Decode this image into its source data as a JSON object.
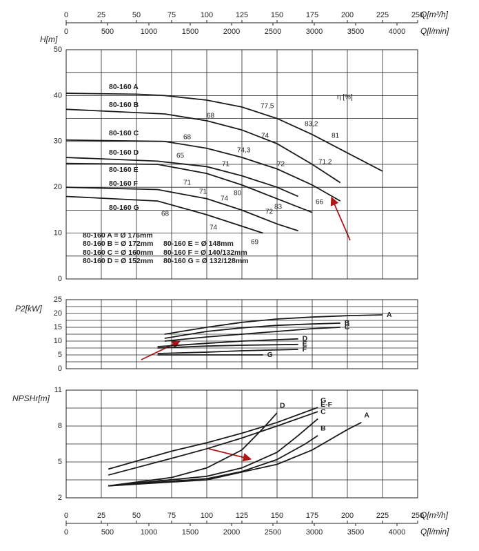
{
  "q_axes": [
    {
      "label": "Q[m³/h]",
      "xlim": [
        0,
        250
      ],
      "xticks": [
        0,
        25,
        50,
        75,
        100,
        125,
        150,
        175,
        200,
        225,
        250
      ]
    },
    {
      "label": "Q[l/min]",
      "xlim": [
        0,
        4250
      ],
      "xticks": [
        0,
        500,
        1000,
        1500,
        2000,
        2500,
        3000,
        3500,
        4000
      ]
    }
  ],
  "chart_data": [
    {
      "type": "line",
      "ylabel": "H[m]",
      "ylim": [
        0,
        50
      ],
      "yticks": [
        0,
        10,
        20,
        30,
        40,
        50
      ],
      "xlim": [
        0,
        250
      ],
      "grid": true,
      "series": [
        {
          "name": "80-160 A",
          "color": "#1a1a1a",
          "x": [
            0,
            50,
            70,
            100,
            125,
            150,
            175,
            200,
            225
          ],
          "values": [
            40.5,
            40.3,
            40,
            39,
            37.5,
            35,
            31.5,
            27.5,
            23.5
          ]
        },
        {
          "name": "80-160 B",
          "color": "#1a1a1a",
          "x": [
            0,
            70,
            100,
            125,
            150,
            175,
            195
          ],
          "values": [
            37,
            36,
            34.5,
            32.5,
            29.5,
            25,
            21
          ]
        },
        {
          "name": "80-160 C",
          "color": "#1a1a1a",
          "x": [
            0,
            70,
            100,
            125,
            150,
            175,
            195
          ],
          "values": [
            30.3,
            30,
            28.5,
            26.5,
            24,
            20.5,
            17
          ]
        },
        {
          "name": "80-160 D",
          "color": "#1a1a1a",
          "x": [
            0,
            65,
            100,
            125,
            150,
            165
          ],
          "values": [
            26.5,
            25.7,
            24.5,
            22.5,
            20,
            18
          ]
        },
        {
          "name": "80-160 E",
          "color": "#1a1a1a",
          "x": [
            0,
            65,
            100,
            125,
            150,
            175
          ],
          "values": [
            25.2,
            25,
            23,
            20.5,
            17.5,
            14.5
          ]
        },
        {
          "name": "80-160 F",
          "color": "#1a1a1a",
          "x": [
            0,
            65,
            100,
            125,
            150,
            165
          ],
          "values": [
            20,
            19.5,
            17.5,
            15,
            12,
            10.5
          ]
        },
        {
          "name": "80-160 G",
          "color": "#1a1a1a",
          "x": [
            0,
            65,
            100,
            125,
            140
          ],
          "values": [
            18,
            17,
            14,
            11.5,
            10
          ]
        }
      ],
      "annotations": [
        "η [%]",
        "77,5",
        "83,2",
        "81",
        "68",
        "74",
        "68",
        "74,3",
        "65",
        "71",
        "72",
        "71,2",
        "71",
        "80",
        "66",
        "71",
        "74",
        "83",
        "72",
        "68",
        "74",
        "69"
      ],
      "legend_texts": [
        "80-160 A = Ø 176mm",
        "80-160 B = Ø 172mm",
        "80-160 C = Ø 160mm",
        "80-160 D = Ø 152mm",
        "80-160 E = Ø 148mm",
        "80-160 F = Ø 140/132mm",
        "80-160 G = Ø 132/128mm"
      ]
    },
    {
      "type": "line",
      "ylabel": "P2[kW]",
      "ylim": [
        0,
        25
      ],
      "yticks": [
        0,
        5,
        10,
        15,
        20,
        25
      ],
      "xlim": [
        0,
        250
      ],
      "grid": true,
      "series": [
        {
          "name": "A",
          "color": "#1a1a1a",
          "x": [
            70,
            100,
            125,
            150,
            175,
            200,
            225
          ],
          "values": [
            12.5,
            15,
            16.8,
            18,
            18.7,
            19.2,
            19.5
          ]
        },
        {
          "name": "B",
          "color": "#1a1a1a",
          "x": [
            70,
            100,
            125,
            150,
            175,
            195
          ],
          "values": [
            11,
            13.5,
            14.8,
            15.7,
            16.2,
            16.5
          ]
        },
        {
          "name": "C",
          "color": "#1a1a1a",
          "x": [
            70,
            100,
            125,
            150,
            175,
            195
          ],
          "values": [
            10,
            11.5,
            12.5,
            13.5,
            14.5,
            15
          ]
        },
        {
          "name": "D",
          "color": "#1a1a1a",
          "x": [
            65,
            100,
            125,
            150,
            165
          ],
          "values": [
            8,
            9.2,
            10,
            10.5,
            10.8
          ]
        },
        {
          "name": "E",
          "color": "#1a1a1a",
          "x": [
            65,
            100,
            125,
            165
          ],
          "values": [
            7.5,
            8.2,
            8.5,
            8.8
          ]
        },
        {
          "name": "F",
          "color": "#1a1a1a",
          "x": [
            65,
            100,
            125,
            165
          ],
          "values": [
            5.5,
            6,
            6.5,
            7
          ]
        },
        {
          "name": "G",
          "color": "#1a1a1a",
          "x": [
            65,
            100,
            140
          ],
          "values": [
            5,
            5,
            5
          ]
        }
      ]
    },
    {
      "type": "line",
      "ylabel": "NPSHr[m]",
      "ylim": [
        2,
        11
      ],
      "yticks": [
        2,
        5,
        8,
        11
      ],
      "xlim": [
        0,
        250
      ],
      "grid": true,
      "series": [
        {
          "name": "A",
          "color": "#1a1a1a",
          "x": [
            30,
            100,
            150,
            175,
            200,
            210
          ],
          "values": [
            3,
            3.5,
            4.8,
            6,
            7.7,
            8.3
          ]
        },
        {
          "name": "B",
          "color": "#1a1a1a",
          "x": [
            30,
            100,
            125,
            150,
            170,
            179
          ],
          "values": [
            3,
            3.6,
            4.2,
            5.2,
            6.5,
            7.2
          ]
        },
        {
          "name": "C",
          "color": "#1a1a1a",
          "x": [
            30,
            100,
            125,
            150,
            165,
            179
          ],
          "values": [
            3,
            3.8,
            4.5,
            5.8,
            7.2,
            8.6
          ]
        },
        {
          "name": "D",
          "color": "#1a1a1a",
          "x": [
            30,
            75,
            100,
            125,
            140,
            150
          ],
          "values": [
            3,
            3.7,
            4.5,
            6,
            7.8,
            9.1
          ]
        },
        {
          "name": "E-F",
          "color": "#1a1a1a",
          "x": [
            30,
            75,
            100,
            125,
            150,
            179
          ],
          "values": [
            3.9,
            5.3,
            6.1,
            7,
            8,
            9.2
          ]
        },
        {
          "name": "G",
          "color": "#1a1a1a",
          "x": [
            30,
            75,
            100,
            125,
            150,
            179
          ],
          "values": [
            4.4,
            5.9,
            6.6,
            7.4,
            8.3,
            9.55
          ]
        }
      ]
    }
  ]
}
